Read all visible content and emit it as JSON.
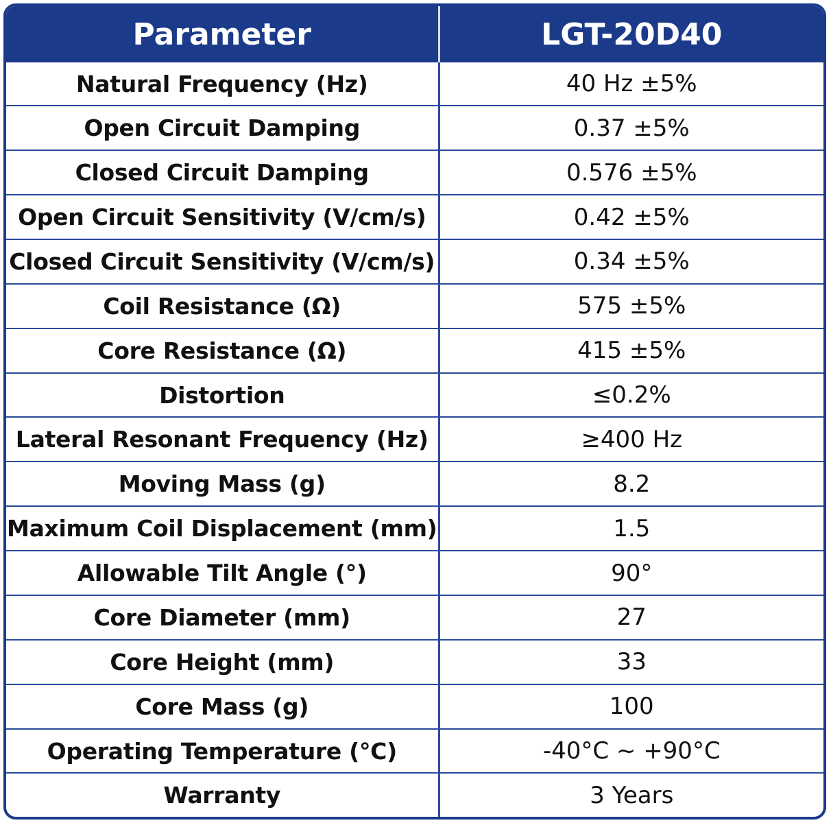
{
  "header": {
    "col_parameter": "Parameter",
    "col_model": "LGT-20D40"
  },
  "rows": [
    {
      "parameter": "Natural Frequency (Hz)",
      "value": "40 Hz ±5%"
    },
    {
      "parameter": "Open Circuit Damping",
      "value": "0.37 ±5%"
    },
    {
      "parameter": "Closed Circuit Damping",
      "value": "0.576 ±5%"
    },
    {
      "parameter": "Open Circuit Sensitivity (V/cm/s)",
      "value": "0.42 ±5%"
    },
    {
      "parameter": "Closed Circuit Sensitivity (V/cm/s)",
      "value": "0.34 ±5%"
    },
    {
      "parameter": "Coil Resistance (Ω)",
      "value": "575 ±5%"
    },
    {
      "parameter": "Core Resistance (Ω)",
      "value": "415 ±5%"
    },
    {
      "parameter": "Distortion",
      "value": "≤0.2%"
    },
    {
      "parameter": "Lateral Resonant Frequency (Hz)",
      "value": "≥400 Hz"
    },
    {
      "parameter": "Moving Mass (g)",
      "value": "8.2"
    },
    {
      "parameter": "Maximum Coil Displacement (mm)",
      "value": "1.5"
    },
    {
      "parameter": "Allowable Tilt Angle (°)",
      "value": "90°"
    },
    {
      "parameter": "Core Diameter (mm)",
      "value": "27"
    },
    {
      "parameter": "Core Height (mm)",
      "value": "33"
    },
    {
      "parameter": "Core Mass (g)",
      "value": "100"
    },
    {
      "parameter": "Operating Temperature (°C)",
      "value": "-40°C ~ +90°C"
    },
    {
      "parameter": "Warranty",
      "value": "3 Years"
    }
  ],
  "colors": {
    "header_background": "#1b3a8a",
    "header_text": "#ffffff",
    "border": "#2a4a9a"
  }
}
